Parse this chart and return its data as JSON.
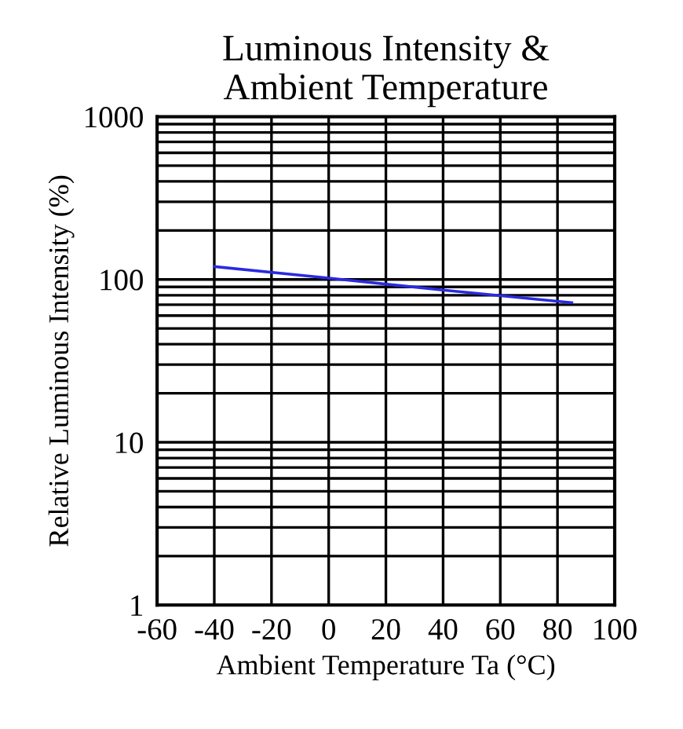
{
  "chart_data": {
    "type": "line",
    "title": "Luminous Intensity &\nAmbient Temperature",
    "xlabel": "Ambient Temperature Ta (°C)",
    "ylabel": "Relative Luminous Intensity (%)",
    "series": [
      {
        "color": "#2a2ae0",
        "x": [
          -40,
          0,
          40,
          85
        ],
        "values": [
          120,
          102,
          86,
          72
        ]
      }
    ],
    "xlim": [
      -60,
      100
    ],
    "xticks": [
      -60,
      -40,
      -20,
      0,
      20,
      40,
      60,
      80,
      100
    ],
    "ylim": [
      1,
      1000
    ],
    "log": true,
    "yticks": [
      1,
      {
        "value": 2,
        "label": null
      },
      {
        "value": 3,
        "label": null
      },
      {
        "value": 4,
        "label": null
      },
      {
        "value": 5,
        "label": null
      },
      {
        "value": 6,
        "label": null
      },
      {
        "value": 7,
        "label": null
      },
      {
        "value": 8,
        "label": null
      },
      {
        "value": 9,
        "label": null
      },
      10,
      {
        "value": 20,
        "label": null
      },
      {
        "value": 30,
        "label": null
      },
      {
        "value": 40,
        "label": null
      },
      {
        "value": 50,
        "label": null
      },
      {
        "value": 60,
        "label": null
      },
      {
        "value": 70,
        "label": null
      },
      {
        "value": 80,
        "label": null
      },
      {
        "value": 90,
        "label": null
      },
      100,
      {
        "value": 200,
        "label": null
      },
      {
        "value": 300,
        "label": null
      },
      {
        "value": 400,
        "label": null
      },
      {
        "value": 500,
        "label": null
      },
      {
        "value": 600,
        "label": null
      },
      {
        "value": 700,
        "label": null
      },
      {
        "value": 800,
        "label": null
      },
      {
        "value": 900,
        "label": null
      },
      1000
    ],
    "grid": true,
    "line_style": "solid"
  }
}
